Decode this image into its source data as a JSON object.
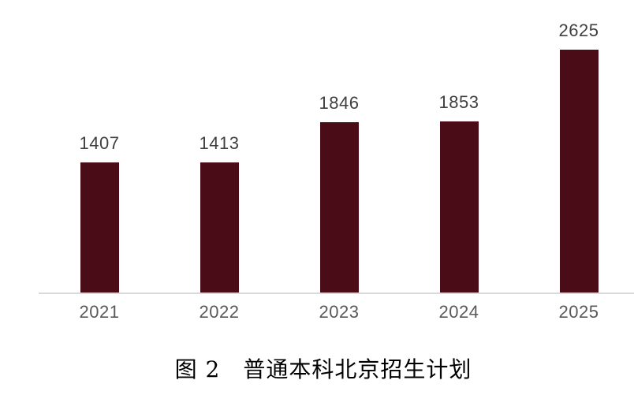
{
  "chart_data": {
    "type": "bar",
    "title": "图 2　普通本科北京招生计划",
    "categories": [
      "2021",
      "2022",
      "2023",
      "2024",
      "2025"
    ],
    "values": [
      1407,
      1413,
      1846,
      1853,
      2625
    ],
    "xlabel": "",
    "ylabel": "",
    "grid": false,
    "legend": false,
    "y_axis_visible": false,
    "value_labels_shown": true,
    "colors": {
      "bar": "#4a0d18",
      "axis_line": "#d9d9d9",
      "value_label": "#404040",
      "tick_label": "#595959",
      "title_text": "#000000",
      "background": "#ffffff"
    }
  }
}
